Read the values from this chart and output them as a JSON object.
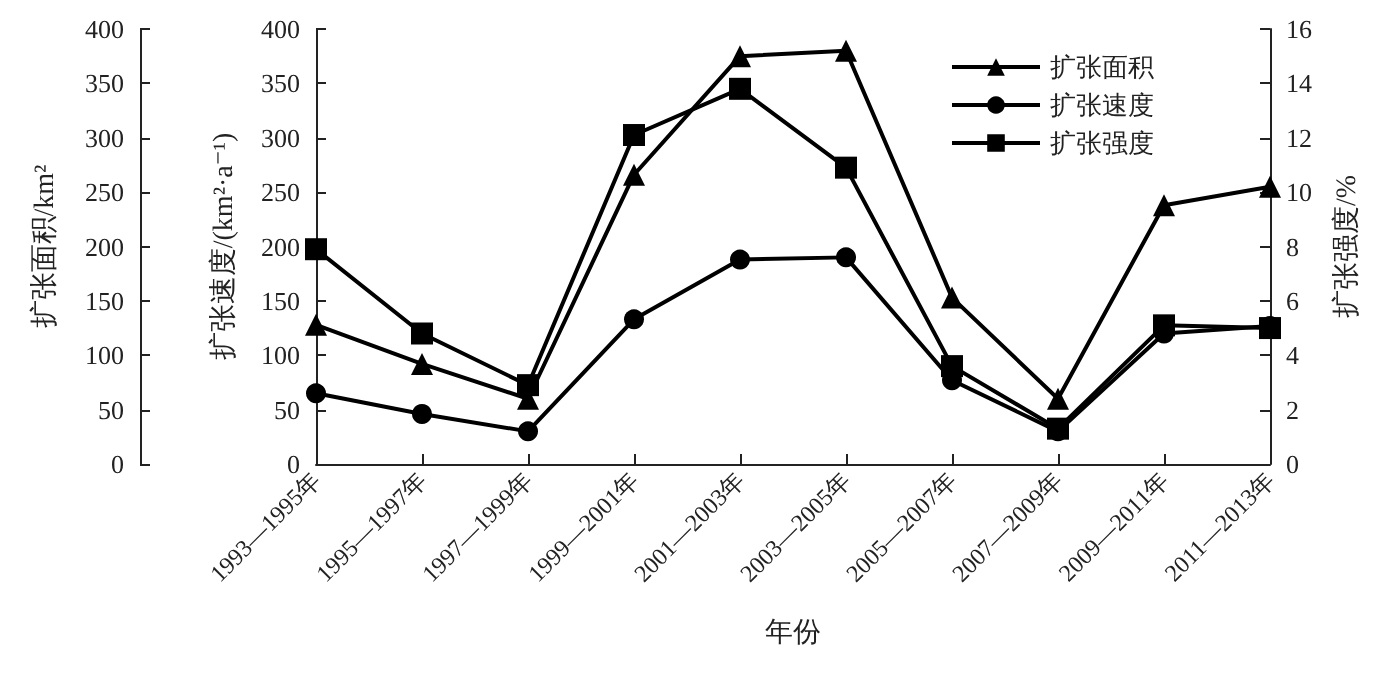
{
  "chart_data": {
    "type": "line",
    "xlabel": "年份",
    "ylabel": "扩张面积/km²",
    "y2label": "扩张速度/(km²·a⁻¹)",
    "y3label": "扩张强度/%",
    "categories": [
      "1993—1995年",
      "1995—1997年",
      "1997—1999年",
      "1999—2001年",
      "2001—2003年",
      "2003—2005年",
      "2005—2007年",
      "2007—2009年",
      "2009—2011年",
      "2011—2013年"
    ],
    "series": [
      {
        "name": "扩张面积",
        "color": "#000000",
        "marker": "triangle",
        "axis": "y",
        "values": [
          128,
          92,
          60,
          266,
          375,
          380,
          153,
          60,
          238,
          255
        ]
      },
      {
        "name": "扩张速度",
        "color": "#000000",
        "marker": "circle",
        "axis": "y2",
        "values": [
          65,
          46,
          30,
          133,
          188,
          190,
          77,
          30,
          120,
          127
        ]
      },
      {
        "name": "扩张强度",
        "color": "#000000",
        "marker": "square",
        "axis": "y3",
        "values": [
          7.9,
          4.8,
          2.9,
          12.1,
          13.8,
          10.9,
          3.6,
          1.3,
          5.1,
          5.0
        ]
      }
    ],
    "ylim": [
      0,
      400
    ],
    "yticks": [
      0,
      50,
      100,
      150,
      200,
      250,
      300,
      350,
      400
    ],
    "y2lim": [
      0,
      400
    ],
    "y2ticks": [
      0,
      50,
      100,
      150,
      200,
      250,
      300,
      350,
      400
    ],
    "y3lim": [
      0,
      16
    ],
    "y3ticks": [
      0,
      2,
      4,
      6,
      8,
      10,
      12,
      14,
      16
    ],
    "legend": "top right",
    "grid": false,
    "line_style": "solid"
  }
}
